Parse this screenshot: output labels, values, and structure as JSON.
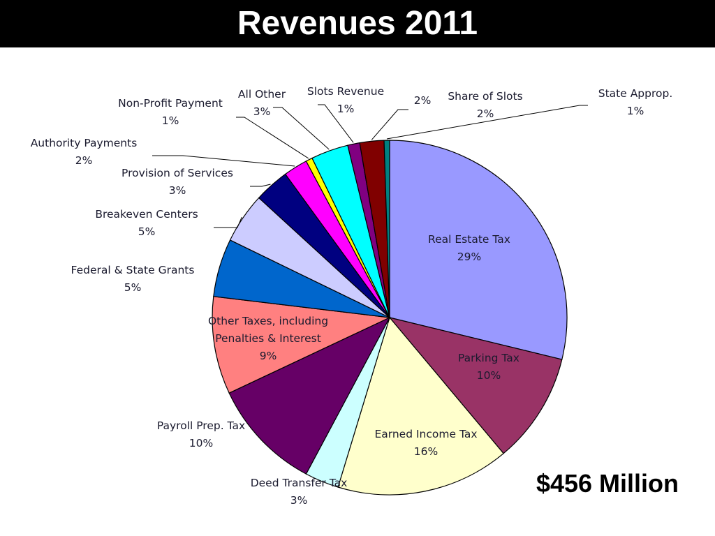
{
  "title": "Revenues 2011",
  "total": "$456 Million",
  "chart_data": {
    "type": "pie",
    "title": "Revenues 2011",
    "slices": [
      {
        "label": "Real Estate Tax",
        "pct_text": "29%",
        "value": 28.8,
        "color": "#9999ff"
      },
      {
        "label": "Parking Tax",
        "pct_text": "10%",
        "value": 10.1,
        "color": "#993366"
      },
      {
        "label": "Earned Income Tax",
        "pct_text": "16%",
        "value": 15.8,
        "color": "#ffffcc"
      },
      {
        "label": "Deed Transfer Tax",
        "pct_text": "3%",
        "value": 3.1,
        "color": "#ccffff"
      },
      {
        "label": "Payroll Prep. Tax",
        "pct_text": "10%",
        "value": 10.2,
        "color": "#660066"
      },
      {
        "label": "Other Taxes, including Penalties & Interest",
        "pct_text": "9%",
        "value": 8.9,
        "color": "#ff8080"
      },
      {
        "label": "Federal & State Grants",
        "pct_text": "5%",
        "value": 5.3,
        "color": "#0066cc"
      },
      {
        "label": "Breakeven Centers",
        "pct_text": "5%",
        "value": 4.6,
        "color": "#ccccff"
      },
      {
        "label": "Provision of Services",
        "pct_text": "3%",
        "value": 3.2,
        "color": "#000080"
      },
      {
        "label": "Authority Payments",
        "pct_text": "2%",
        "value": 2.2,
        "color": "#ff00ff"
      },
      {
        "label": "Non-Profit Payment",
        "pct_text": "1%",
        "value": 0.6,
        "color": "#ffff00"
      },
      {
        "label": "All Other",
        "pct_text": "3%",
        "value": 3.4,
        "color": "#00ffff"
      },
      {
        "label": "Slots Revenue",
        "pct_text": "1%",
        "value": 1.1,
        "color": "#800080"
      },
      {
        "label": "Share of Slots",
        "pct_text": "2%",
        "value": 2.2,
        "color": "#800000"
      },
      {
        "label": "State Approp.",
        "pct_text": "1%",
        "value": 0.5,
        "color": "#008080"
      }
    ],
    "extra_label": "2%"
  }
}
